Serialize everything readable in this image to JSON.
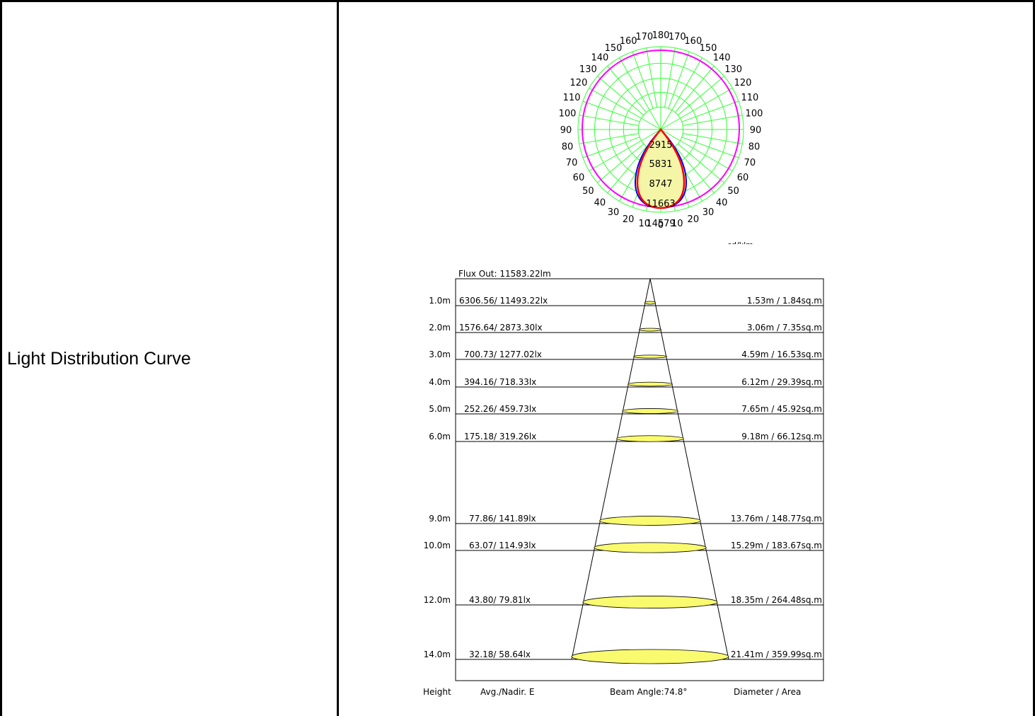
{
  "row": {
    "label": "Light Distribution Curve"
  },
  "polar": {
    "angle_labels": [
      "180",
      "170",
      "160",
      "150",
      "140",
      "130",
      "120",
      "110",
      "100",
      "90",
      "80",
      "70",
      "60",
      "50",
      "40",
      "30",
      "20",
      "10",
      "0"
    ],
    "intensity_labels": [
      "2915",
      "5831",
      "8747",
      "11663",
      "14579"
    ],
    "unit_text": "cd/klm",
    "colors": {
      "grid": "#33ff33",
      "c0": "#0000ff",
      "c90": "#ff0000",
      "fill": "#f5f5a8",
      "outer": "#ff00ff"
    }
  },
  "illuminance": {
    "flux_text": "Flux Out: 11583.22lm",
    "rows": [
      {
        "height": "1.0m",
        "lux": "6306.56/ 11493.22lx",
        "area": "1.53m / 1.84sq.m",
        "h": 1
      },
      {
        "height": "2.0m",
        "lux": "1576.64/ 2873.30lx",
        "area": "3.06m / 7.35sq.m",
        "h": 2
      },
      {
        "height": "3.0m",
        "lux": "700.73/ 1277.02lx",
        "area": "4.59m / 16.53sq.m",
        "h": 3
      },
      {
        "height": "4.0m",
        "lux": "394.16/ 718.33lx",
        "area": "6.12m / 29.39sq.m",
        "h": 4
      },
      {
        "height": "5.0m",
        "lux": "252.26/ 459.73lx",
        "area": "7.65m / 45.92sq.m",
        "h": 5
      },
      {
        "height": "6.0m",
        "lux": "175.18/ 319.26lx",
        "area": "9.18m / 66.12sq.m",
        "h": 6
      },
      {
        "height": "9.0m",
        "lux": "77.86/ 141.89lx",
        "area": "13.76m / 148.77sq.m",
        "h": 9
      },
      {
        "height": "10.0m",
        "lux": "63.07/ 114.93lx",
        "area": "15.29m / 183.67sq.m",
        "h": 10
      },
      {
        "height": "12.0m",
        "lux": "43.80/ 79.81lx",
        "area": "18.35m / 264.48sq.m",
        "h": 12
      },
      {
        "height": "14.0m",
        "lux": "32.18/ 58.64lx",
        "area": "21.41m / 359.99sq.m",
        "h": 14
      }
    ],
    "footer": {
      "height": "Height",
      "avg": "Avg./Nadir. E",
      "beam": "Beam Angle:74.8°",
      "diameter": "Diameter / Area"
    },
    "beam_angle_deg": 74.8
  }
}
